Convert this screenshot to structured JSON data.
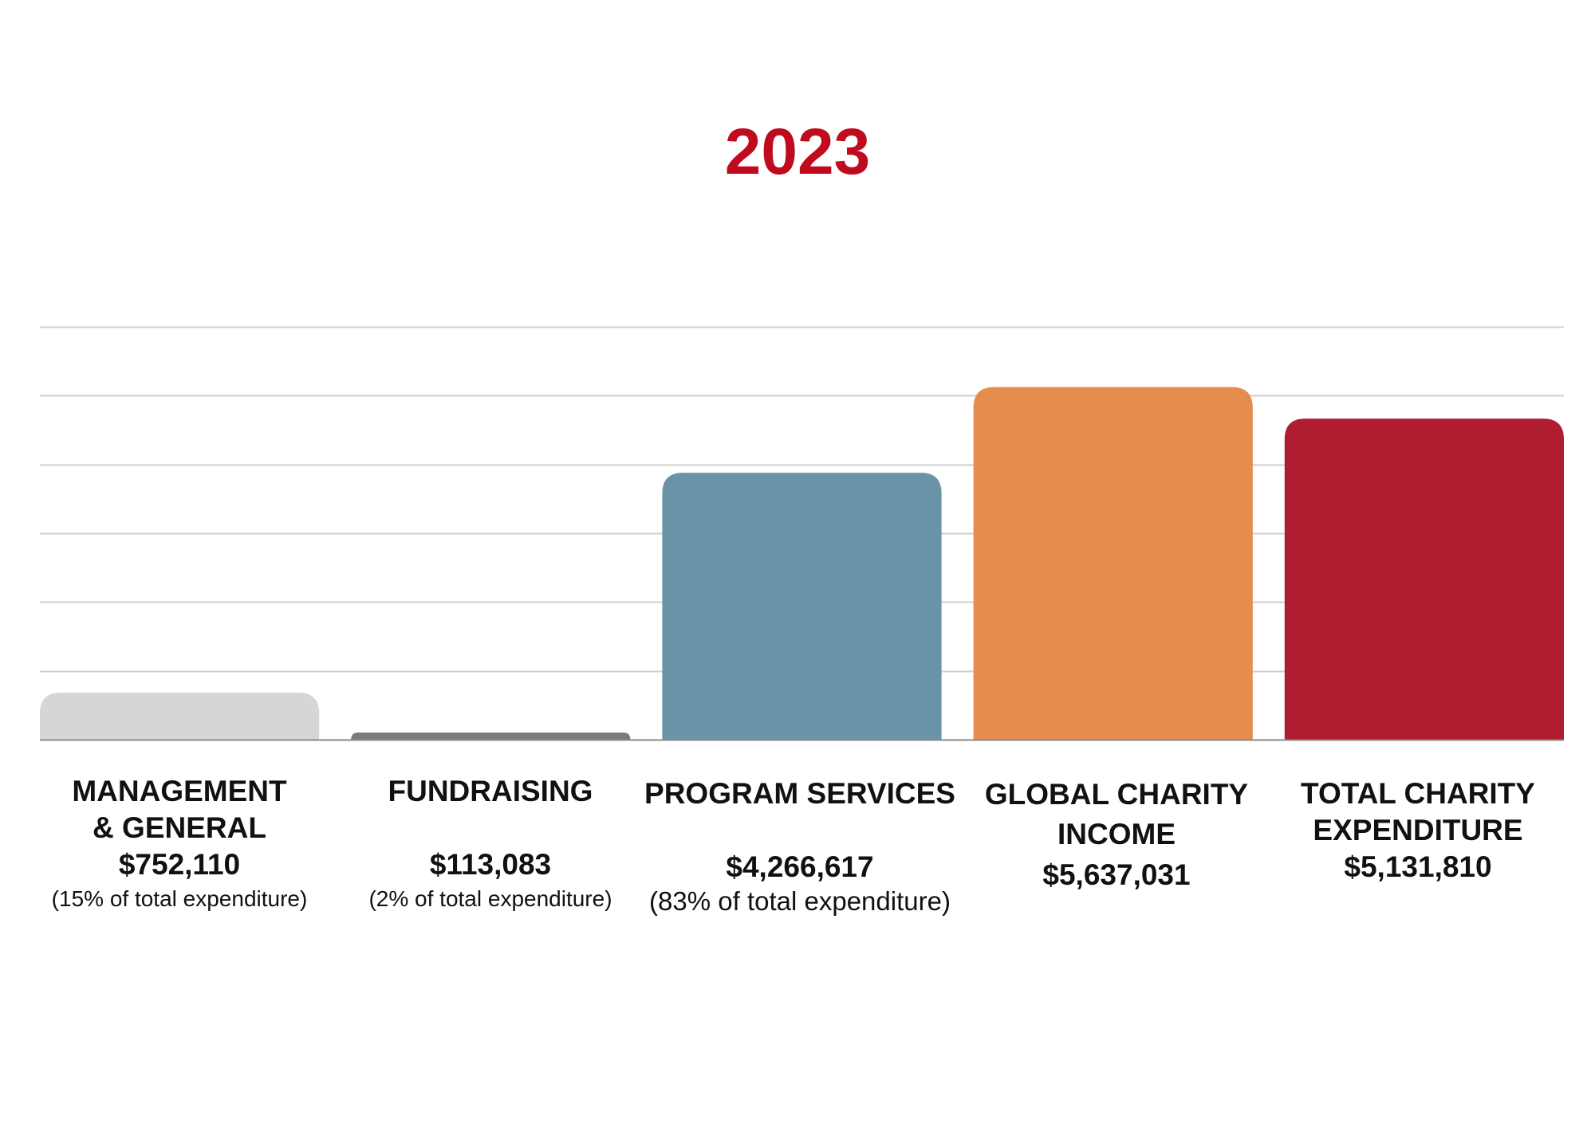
{
  "title": "2023",
  "chart_data": {
    "type": "bar",
    "title": "2023",
    "xlabel": "",
    "ylabel": "",
    "ylim": [
      0,
      6600000
    ],
    "grid": true,
    "gridlines": 6,
    "categories": [
      "MANAGEMENT & GENERAL",
      "FUNDRAISING",
      "PROGRAM SERVICES",
      "GLOBAL CHARITY INCOME",
      "TOTAL CHARITY EXPENDITURE"
    ],
    "values": [
      752110,
      113083,
      4266617,
      5637031,
      5131810
    ],
    "colors": [
      "#d6d6d6",
      "#7a7a7a",
      "#6b93a7",
      "#e58d4d",
      "#b01c30"
    ],
    "labels": [
      {
        "name_lines": [
          "MANAGEMENT",
          "& GENERAL"
        ],
        "value": "$752,110",
        "note": "(15% of total expenditure)"
      },
      {
        "name_lines": [
          "FUNDRAISING"
        ],
        "value": "$113,083",
        "note": "(2% of total expenditure)"
      },
      {
        "name_lines": [
          "PROGRAM SERVICES"
        ],
        "value": "$4,266,617",
        "note": "(83% of total expenditure)"
      },
      {
        "name_lines": [
          "GLOBAL CHARITY",
          "INCOME"
        ],
        "value": "$5,637,031",
        "note": ""
      },
      {
        "name_lines": [
          "TOTAL CHARITY",
          "EXPENDITURE"
        ],
        "value": "$5,131,810",
        "note": ""
      }
    ]
  }
}
